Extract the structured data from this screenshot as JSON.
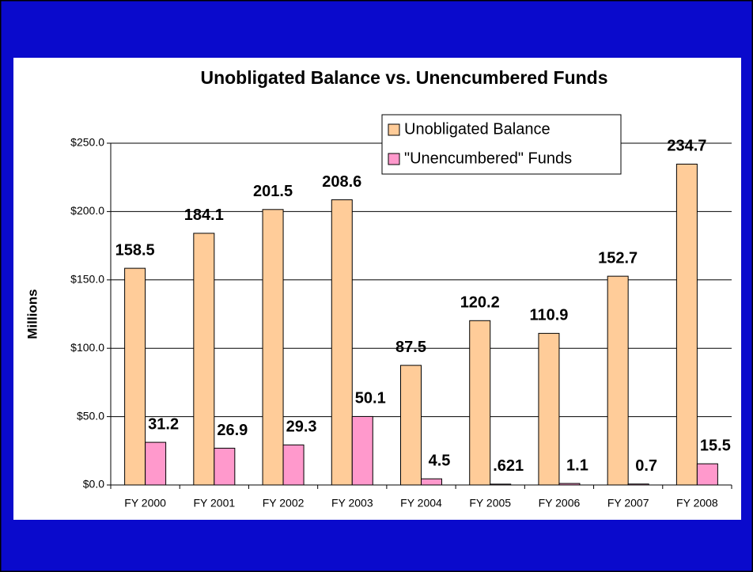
{
  "chart_data": {
    "type": "bar",
    "title": "Unobligated Balance vs. Unencumbered Funds",
    "y_label": "Millions",
    "categories": [
      "FY 2000",
      "FY 2001",
      "FY 2002",
      "FY 2003",
      "FY 2004",
      "FY 2005",
      "FY 2006",
      "FY 2007",
      "FY 2008"
    ],
    "series": [
      {
        "name": "Unobligated Balance",
        "color": "#ffcc99",
        "values": [
          158.5,
          184.1,
          201.5,
          208.6,
          87.5,
          120.2,
          110.9,
          152.7,
          234.7
        ]
      },
      {
        "name": "\"Unencumbered\" Funds",
        "color": "#ff99cc",
        "values": [
          31.2,
          26.9,
          29.3,
          50.1,
          4.5,
          0.621,
          1.1,
          0.7,
          15.5
        ],
        "value_labels": [
          "31.2",
          "26.9",
          "29.3",
          "50.1",
          "4.5",
          ".621",
          "1.1",
          "0.7",
          "15.5"
        ]
      }
    ],
    "ylim": [
      0,
      250
    ],
    "yticks": [
      {
        "value": 0,
        "label": "$0.0"
      },
      {
        "value": 50,
        "label": "$50.0"
      },
      {
        "value": 100,
        "label": "$100.0"
      },
      {
        "value": 150,
        "label": "$150.0"
      },
      {
        "value": 200,
        "label": "$200.0"
      },
      {
        "value": 250,
        "label": "$250.0"
      }
    ],
    "grid": true,
    "legend": "top-right"
  }
}
